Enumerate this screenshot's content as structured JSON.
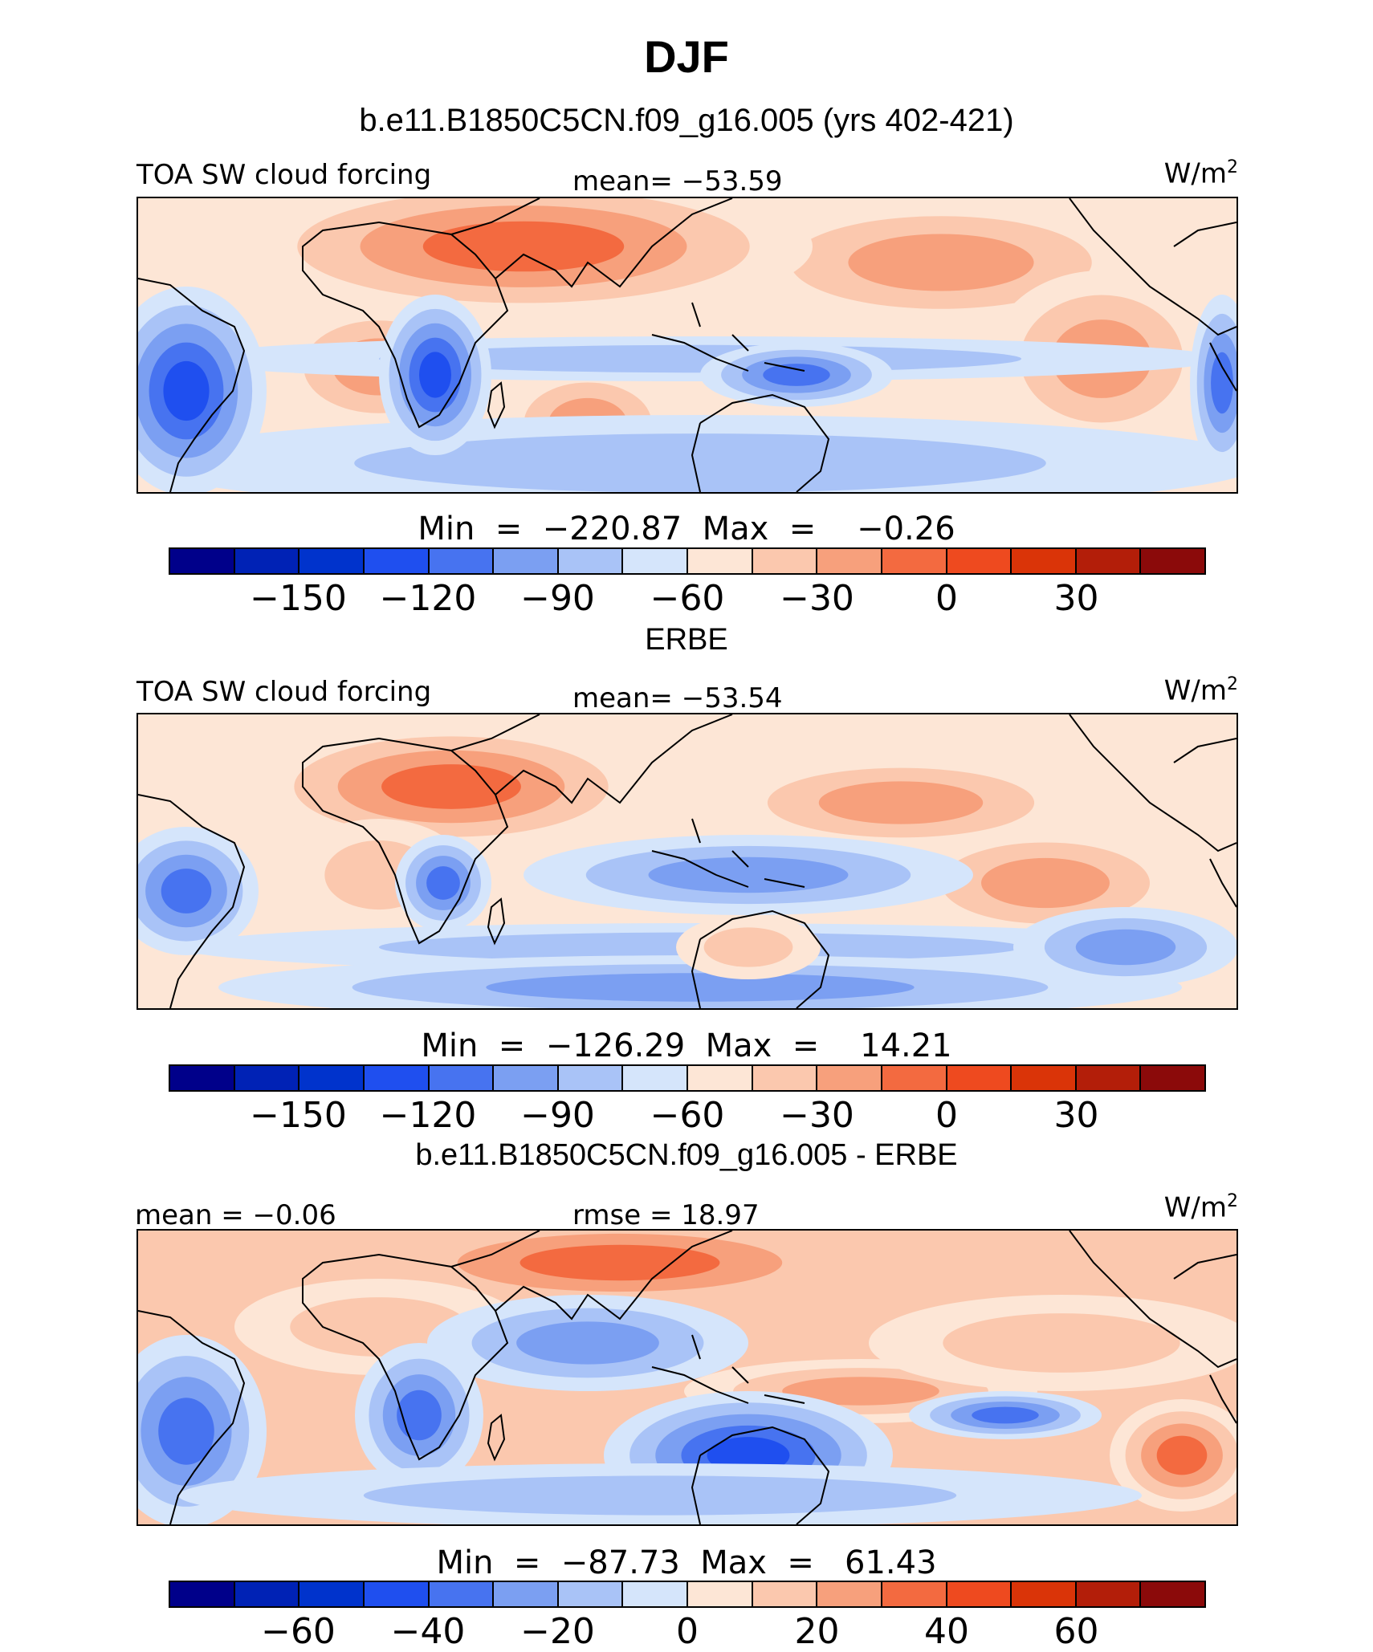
{
  "figure": {
    "title": "DJF"
  },
  "panels": [
    {
      "title": "b.e11.B1850C5CN.f09_g16.005 (yrs 402-421)",
      "left_label": "TOA SW cloud forcing",
      "center_label": "mean=  −53.59",
      "units_base": "W/m",
      "units_exp": "2",
      "stats": "Min  =  −220.87  Max  =    −0.26",
      "colorbar": {
        "colors": [
          "#00008a",
          "#0022b5",
          "#0033cc",
          "#1f4fef",
          "#4773f0",
          "#7b9ff2",
          "#a9c3f7",
          "#d5e5fb",
          "#fde6d6",
          "#fbc8ae",
          "#f7a07c",
          "#f36a40",
          "#ee4a1f",
          "#da3408",
          "#b31e09",
          "#8b0a0a"
        ],
        "tick_labels": [
          "−150",
          "−120",
          "−90",
          "−60",
          "−30",
          "0",
          "30"
        ]
      },
      "map_palette": [
        "#f36a40",
        "#f7a07c",
        "#fbc8ae",
        "#fde6d6",
        "#d5e5fb",
        "#a9c3f7",
        "#7b9ff2",
        "#4773f0",
        "#1f4fef",
        "#0033cc"
      ]
    },
    {
      "title": "ERBE",
      "left_label": "TOA SW cloud forcing",
      "center_label": "mean=  −53.54",
      "units_base": "W/m",
      "units_exp": "2",
      "stats": "Min  =  −126.29  Max  =    14.21",
      "colorbar": {
        "colors": [
          "#00008a",
          "#0022b5",
          "#0033cc",
          "#1f4fef",
          "#4773f0",
          "#7b9ff2",
          "#a9c3f7",
          "#d5e5fb",
          "#fde6d6",
          "#fbc8ae",
          "#f7a07c",
          "#f36a40",
          "#ee4a1f",
          "#da3408",
          "#b31e09",
          "#8b0a0a"
        ],
        "tick_labels": [
          "−150",
          "−120",
          "−90",
          "−60",
          "−30",
          "0",
          "30"
        ]
      },
      "map_palette": [
        "#f36a40",
        "#f7a07c",
        "#fbc8ae",
        "#fde6d6",
        "#d5e5fb",
        "#a9c3f7",
        "#7b9ff2",
        "#4773f0",
        "#1f4fef",
        "#0033cc"
      ]
    },
    {
      "title": "b.e11.B1850C5CN.f09_g16.005 - ERBE",
      "left_label": "mean  =   −0.06",
      "center_label": "rmse  =   18.97",
      "units_base": "W/m",
      "units_exp": "2",
      "stats": "Min  =  −87.73  Max  =   61.43",
      "colorbar": {
        "colors": [
          "#00008a",
          "#0022b5",
          "#0033cc",
          "#1f4fef",
          "#4773f0",
          "#7b9ff2",
          "#a9c3f7",
          "#d5e5fb",
          "#fde6d6",
          "#fbc8ae",
          "#f7a07c",
          "#f36a40",
          "#ee4a1f",
          "#da3408",
          "#b31e09",
          "#8b0a0a"
        ],
        "tick_labels": [
          "−60",
          "−40",
          "−20",
          "0",
          "20",
          "40",
          "60"
        ]
      },
      "map_palette": [
        "#ee4a1f",
        "#f36a40",
        "#f7a07c",
        "#fbc8ae",
        "#fde6d6",
        "#d5e5fb",
        "#a9c3f7",
        "#7b9ff2",
        "#4773f0",
        "#1f4fef",
        "#0033cc"
      ]
    }
  ]
}
